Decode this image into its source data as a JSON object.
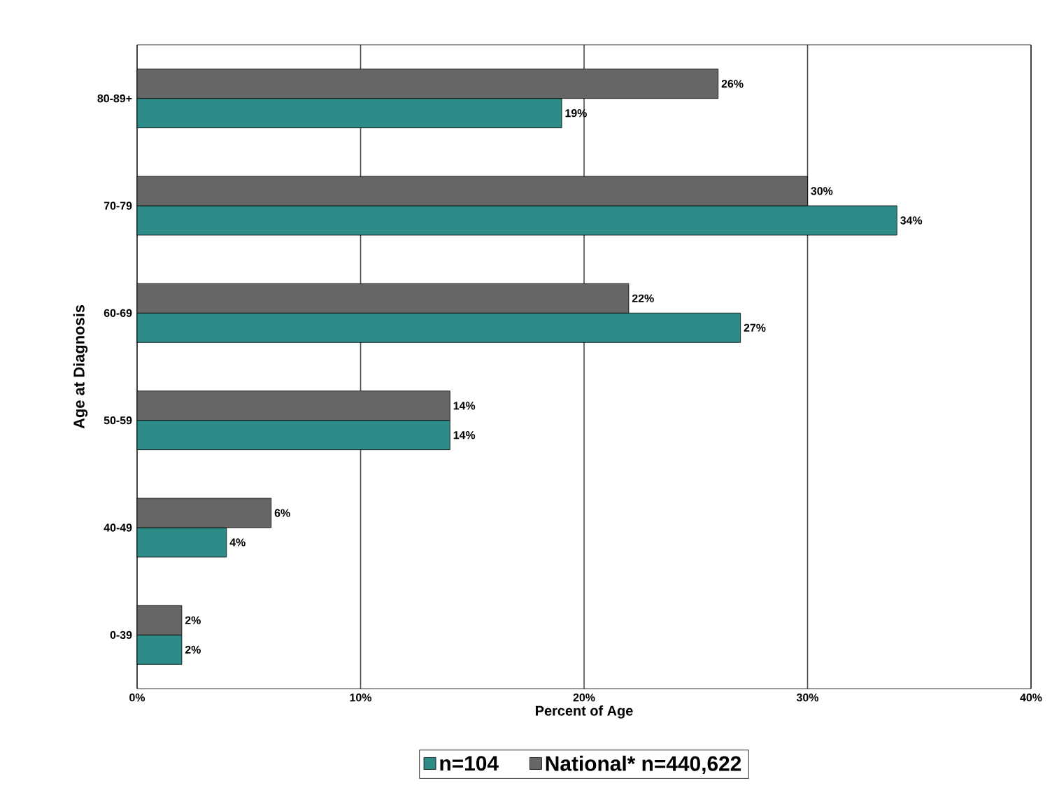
{
  "chart_data": {
    "type": "bar",
    "orientation": "horizontal",
    "xlabel": "Percent of Age",
    "ylabel": "Age at Diagnosis",
    "categories": [
      "80-89+",
      "70-79",
      "60-69",
      "50-59",
      "40-49",
      "0-39"
    ],
    "series": [
      {
        "name": "n=104",
        "color": "#2e8c88",
        "values": [
          19,
          34,
          27,
          14,
          4,
          2
        ],
        "value_labels": [
          "19%",
          "34%",
          "27%",
          "14%",
          "4%",
          "2%"
        ]
      },
      {
        "name": "National* n=440,622",
        "color": "#666666",
        "values": [
          26,
          30,
          22,
          14,
          6,
          2
        ],
        "value_labels": [
          "26%",
          "30%",
          "22%",
          "14%",
          "6%",
          "2%"
        ]
      }
    ],
    "xlim": [
      0,
      40
    ],
    "xticks": [
      {
        "value": 0,
        "label": "0%"
      },
      {
        "value": 10,
        "label": "10%"
      },
      {
        "value": 20,
        "label": "20%"
      },
      {
        "value": 30,
        "label": "30%"
      },
      {
        "value": 40,
        "label": "40%"
      }
    ],
    "grid": "x",
    "legend": "bottom"
  }
}
